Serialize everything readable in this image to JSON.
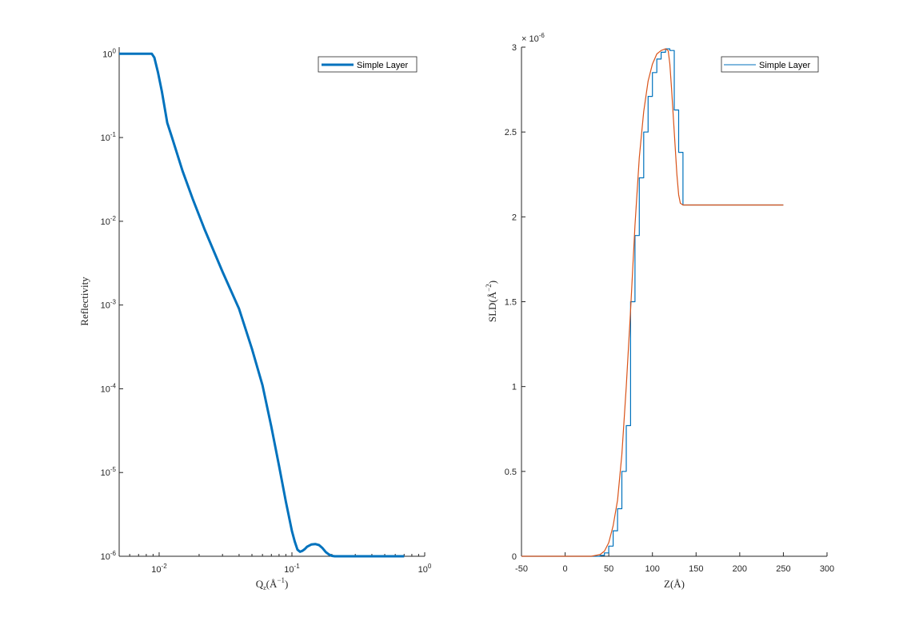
{
  "chart_data": [
    {
      "type": "line",
      "yscale": "log",
      "xscale": "log",
      "xlabel": "Q_z(Å^{-1})",
      "ylabel": "Reflectivity",
      "xlim": [
        0.005,
        1
      ],
      "ylim": [
        1e-06,
        1.2
      ],
      "xticks": [
        {
          "value": 0.01,
          "base": "10",
          "exp": "-2"
        },
        {
          "value": 0.1,
          "base": "10",
          "exp": "-1"
        },
        {
          "value": 1,
          "base": "10",
          "exp": "0"
        }
      ],
      "yticks": [
        {
          "value": 1e-06,
          "base": "10",
          "exp": "-6"
        },
        {
          "value": 1e-05,
          "base": "10",
          "exp": "-5"
        },
        {
          "value": 0.0001,
          "base": "10",
          "exp": "-4"
        },
        {
          "value": 0.001,
          "base": "10",
          "exp": "-3"
        },
        {
          "value": 0.01,
          "base": "10",
          "exp": "-2"
        },
        {
          "value": 0.1,
          "base": "10",
          "exp": "-1"
        },
        {
          "value": 1,
          "base": "10",
          "exp": "0"
        }
      ],
      "legend": {
        "placement": "top-right",
        "entries": [
          "Simple Layer"
        ]
      },
      "grid": false,
      "series": [
        {
          "name": "Simple Layer",
          "color": "#0072bd",
          "x": [
            0.005,
            0.006,
            0.007,
            0.008,
            0.0088,
            0.0092,
            0.0098,
            0.0105,
            0.0115,
            0.0125,
            0.015,
            0.018,
            0.022,
            0.03,
            0.04,
            0.05,
            0.06,
            0.07,
            0.08,
            0.09,
            0.1,
            0.105,
            0.11,
            0.115,
            0.12,
            0.125,
            0.13,
            0.14,
            0.15,
            0.16,
            0.17,
            0.18,
            0.19,
            0.2,
            0.21,
            0.22,
            0.24,
            0.27,
            0.3,
            0.4,
            0.5,
            0.6,
            0.7
          ],
          "y": [
            1,
            1,
            1,
            1,
            1,
            0.9,
            0.6,
            0.35,
            0.15,
            0.1,
            0.04,
            0.018,
            0.008,
            0.0025,
            0.0009,
            0.0003,
            0.00011,
            3.5e-05,
            1.2e-05,
            4.5e-06,
            2e-06,
            1.5e-06,
            1.2e-06,
            1.13e-06,
            1.16e-06,
            1.22e-06,
            1.3e-06,
            1.38e-06,
            1.4e-06,
            1.36e-06,
            1.25e-06,
            1.12e-06,
            1.05e-06,
            1.01e-06,
            1e-06,
            1e-06,
            1e-06,
            1e-06,
            1e-06,
            1e-06,
            1e-06,
            1e-06,
            1e-06
          ]
        }
      ]
    },
    {
      "type": "line",
      "xlabel": "Z(Å)",
      "ylabel": "SLD(Å^{-2})",
      "xlim": [
        -50,
        300
      ],
      "ylim": [
        0,
        3e-06
      ],
      "xticks": [
        -50,
        0,
        50,
        100,
        150,
        200,
        250,
        300
      ],
      "xtick_labels": [
        "-50",
        "0",
        "50",
        "100",
        "150",
        "200",
        "250",
        "300"
      ],
      "yticks": [
        0,
        0.5,
        1,
        1.5,
        2,
        2.5,
        3
      ],
      "ytick_labels": [
        "0",
        "0.5",
        "1",
        "1.5",
        "2",
        "2.5",
        "3"
      ],
      "y_multiplier": {
        "base": "× 10",
        "exp": "-6"
      },
      "legend": {
        "placement": "top-right",
        "entries": [
          "Simple Layer"
        ]
      },
      "grid": false,
      "series": [
        {
          "name": "Simple Layer",
          "color": "#0072bd",
          "step": true,
          "x": [
            -50,
            30,
            40,
            45,
            50,
            55,
            60,
            65,
            70,
            75,
            80,
            85,
            90,
            95,
            100,
            105,
            110,
            115,
            120,
            125,
            130,
            135,
            140,
            150,
            200,
            250
          ],
          "y": [
            0,
            0,
            0.005,
            0.02,
            0.06,
            0.15,
            0.28,
            0.5,
            0.77,
            1.5,
            1.89,
            2.23,
            2.5,
            2.71,
            2.85,
            2.93,
            2.97,
            2.99,
            2.98,
            2.63,
            2.38,
            2.07,
            2.07,
            2.07,
            2.07,
            2.07
          ]
        },
        {
          "color": "#d95319",
          "x": [
            -50,
            20,
            30,
            40,
            45,
            50,
            55,
            60,
            65,
            70,
            75,
            80,
            85,
            90,
            95,
            100,
            105,
            110,
            115,
            118,
            120,
            122,
            125,
            128,
            130,
            132,
            135,
            140,
            150,
            200,
            250
          ],
          "y": [
            0,
            0,
            0.0,
            0.01,
            0.03,
            0.08,
            0.18,
            0.33,
            0.6,
            1.0,
            1.45,
            1.95,
            2.35,
            2.62,
            2.8,
            2.9,
            2.96,
            2.98,
            2.99,
            2.98,
            2.9,
            2.75,
            2.5,
            2.25,
            2.13,
            2.08,
            2.07,
            2.07,
            2.07,
            2.07,
            2.07
          ]
        }
      ]
    }
  ]
}
